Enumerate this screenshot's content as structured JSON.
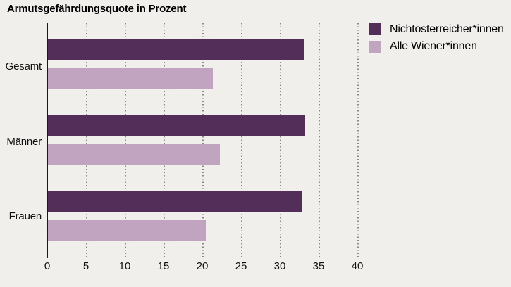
{
  "title": "Armutsgefährdungsquote in Prozent",
  "chart_data": {
    "type": "bar",
    "orientation": "horizontal",
    "title": "Armutsgefährdungsquote in Prozent",
    "categories": [
      "Gesamt",
      "Männer",
      "Frauen"
    ],
    "series": [
      {
        "name": "Nichtösterreicher*innen",
        "color": "#532e58",
        "values": [
          33.0,
          33.2,
          32.8
        ]
      },
      {
        "name": "Alle Wiener*innen",
        "color": "#c0a4c0",
        "values": [
          21.3,
          22.2,
          20.4
        ]
      }
    ],
    "value_unit": "Prozent",
    "xlim": [
      0,
      40
    ],
    "xticks": [
      0,
      5,
      10,
      15,
      20,
      25,
      30,
      35,
      40
    ],
    "grid": "dotted vertical gridlines every 5 units",
    "legend_position": "top-right"
  },
  "colors": {
    "background": "#f1efec",
    "axis": "#1a1a1a",
    "grid_dots": "#8a8a8a",
    "text": "#111111"
  }
}
